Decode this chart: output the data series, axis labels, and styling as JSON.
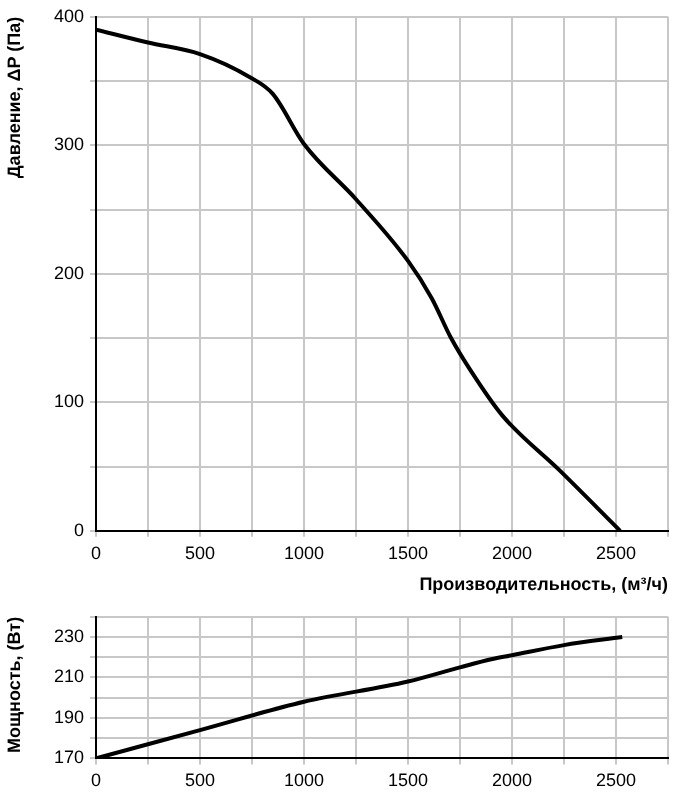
{
  "chart_data": [
    {
      "type": "line",
      "ylabel": "Давление, ΔP (Па)",
      "xlabel": "Производительность, (м³/ч)",
      "xlim": [
        0,
        2750
      ],
      "ylim": [
        0,
        400
      ],
      "xticks": [
        0,
        {
          "value": 250,
          "label": null
        },
        500,
        {
          "value": 750,
          "label": null
        },
        1000,
        {
          "value": 1250,
          "label": null
        },
        1500,
        {
          "value": 1750,
          "label": null
        },
        2000,
        {
          "value": 2250,
          "label": null
        },
        2500,
        {
          "value": 2750,
          "label": null
        }
      ],
      "yticks": [
        0,
        {
          "value": 50,
          "label": null
        },
        100,
        {
          "value": 150,
          "label": null
        },
        200,
        {
          "value": 250,
          "label": null
        },
        300,
        {
          "value": 350,
          "label": null
        },
        400
      ],
      "grid": true,
      "legend": false,
      "marker": "none",
      "line_style": "solid",
      "series": [
        {
          "color": "#000000",
          "x": [
            0,
            250,
            500,
            740,
            850,
            1000,
            1250,
            1500,
            1614,
            1707,
            1800,
            1952,
            2229,
            2520
          ],
          "values": [
            390,
            380,
            371,
            353,
            340,
            301,
            258,
            210,
            181,
            150,
            125,
            90,
            47,
            0
          ]
        }
      ]
    },
    {
      "type": "line",
      "ylabel": "Мощность, (Вт)",
      "xlim": [
        0,
        2750
      ],
      "ylim": [
        170,
        240
      ],
      "xticks": [
        0,
        {
          "value": 250,
          "label": null
        },
        500,
        {
          "value": 750,
          "label": null
        },
        1000,
        {
          "value": 1250,
          "label": null
        },
        1500,
        {
          "value": 1750,
          "label": null
        },
        2000,
        {
          "value": 2250,
          "label": null
        },
        2500,
        {
          "value": 2750,
          "label": null
        }
      ],
      "yticks": [
        170,
        {
          "value": 180,
          "label": null
        },
        190,
        {
          "value": 200,
          "label": null
        },
        210,
        {
          "value": 220,
          "label": null
        },
        230,
        {
          "value": 240,
          "label": null
        }
      ],
      "grid": true,
      "legend": false,
      "marker": "none",
      "line_style": "solid",
      "series": [
        {
          "color": "#000000",
          "x": [
            0,
            500,
            1000,
            1500,
            1750,
            1900,
            2000,
            2250,
            2530
          ],
          "values": [
            170,
            184,
            198,
            208,
            215,
            219,
            221,
            226,
            230
          ]
        }
      ]
    }
  ]
}
